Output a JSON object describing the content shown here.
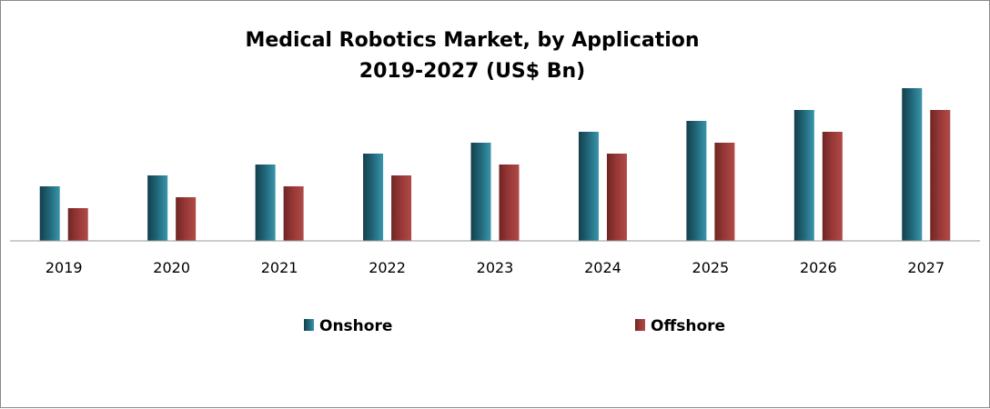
{
  "chart_data": {
    "type": "bar",
    "title_lines": [
      "Medical Robotics Market, by Application",
      "2019-2027 (US$ Bn)"
    ],
    "xlabel": "",
    "ylabel": "",
    "categories": [
      "2019",
      "2020",
      "2021",
      "2022",
      "2023",
      "2024",
      "2025",
      "2026",
      "2027"
    ],
    "series": [
      {
        "name": "Onshore",
        "values": [
          5,
          6,
          7,
          8,
          9,
          10,
          11,
          12,
          14
        ],
        "color": "#1f6477"
      },
      {
        "name": "Offshore",
        "values": [
          3,
          4,
          5,
          6,
          7,
          8,
          9,
          10,
          12
        ],
        "color": "#953735"
      }
    ],
    "ylim": [
      0,
      14
    ],
    "grid": false,
    "y_axis_visible": false,
    "legend_position": "bottom"
  }
}
